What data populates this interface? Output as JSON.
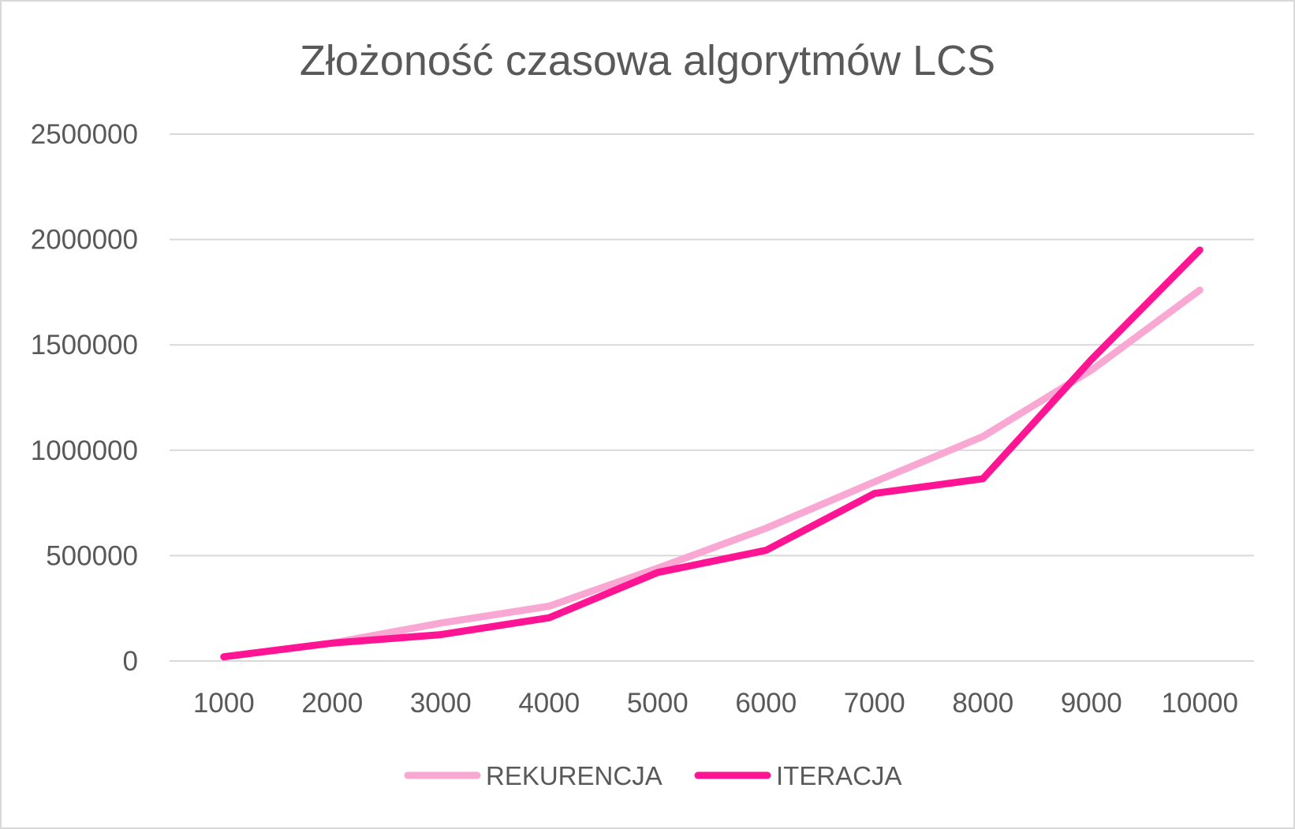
{
  "chart_data": {
    "type": "line",
    "title": "Złożoność czasowa algorytmów LCS",
    "xlabel": "",
    "ylabel": "",
    "categories": [
      "1000",
      "2000",
      "3000",
      "4000",
      "5000",
      "6000",
      "7000",
      "8000",
      "9000",
      "10000"
    ],
    "ylim": [
      0,
      2500000
    ],
    "yticks": [
      "0",
      "500000",
      "1000000",
      "1500000",
      "2000000",
      "2500000"
    ],
    "grid": true,
    "legend_position": "bottom",
    "series": [
      {
        "name": "REKURENCJA",
        "color": "#f9a8d4",
        "values": [
          20000,
          85000,
          180000,
          260000,
          440000,
          630000,
          850000,
          1065000,
          1380000,
          1760000
        ]
      },
      {
        "name": "ITERACJA",
        "color": "#ff1493",
        "values": [
          20000,
          85000,
          125000,
          205000,
          420000,
          525000,
          795000,
          865000,
          1430000,
          1950000
        ]
      }
    ]
  }
}
